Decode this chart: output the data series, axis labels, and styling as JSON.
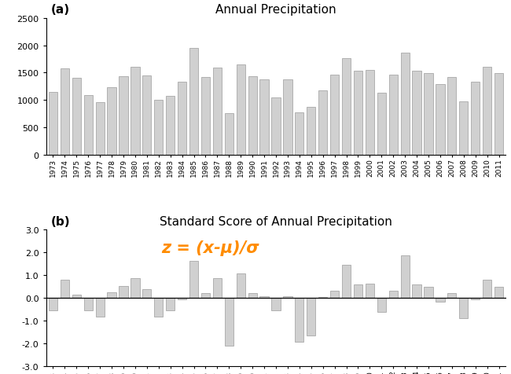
{
  "years": [
    1973,
    1974,
    1975,
    1976,
    1977,
    1978,
    1979,
    1980,
    1981,
    1982,
    1983,
    1984,
    1985,
    1986,
    1987,
    1988,
    1989,
    1990,
    1991,
    1992,
    1993,
    1994,
    1995,
    1996,
    1997,
    1998,
    1999,
    2000,
    2001,
    2002,
    2003,
    2004,
    2005,
    2006,
    2007,
    2008,
    2009,
    2010,
    2011
  ],
  "precip": [
    1150,
    1580,
    1400,
    1090,
    960,
    1230,
    1440,
    1600,
    1450,
    1010,
    1080,
    1340,
    1950,
    1420,
    1590,
    760,
    1650,
    1440,
    1380,
    1040,
    1380,
    780,
    880,
    1170,
    1460,
    1770,
    1540,
    1550,
    1130,
    1460,
    1870,
    1540,
    1490,
    1290,
    1420,
    980,
    1340,
    1600,
    1490
  ],
  "zscore": [
    -0.55,
    0.82,
    0.16,
    -0.55,
    -0.82,
    0.27,
    0.55,
    0.88,
    0.38,
    -0.82,
    -0.55,
    -0.05,
    1.65,
    0.22,
    0.88,
    -2.1,
    1.1,
    0.22,
    0.08,
    -0.55,
    0.08,
    -1.92,
    -1.65,
    0.05,
    0.32,
    1.48,
    0.6,
    0.65,
    -0.6,
    0.32,
    1.87,
    0.6,
    0.49,
    -0.16,
    0.22,
    -0.88,
    -0.05,
    0.82,
    0.49
  ],
  "bar_color": "#d0d0d0",
  "title_a": "Annual Precipitation",
  "title_b": "Standard Score of Annual Precipitation",
  "label_a": "(a)",
  "label_b": "(b)",
  "formula": "z = (x-μ)/σ",
  "formula_color": "#ff8c00",
  "ylim_a": [
    0,
    2500
  ],
  "yticks_a": [
    0,
    500,
    1000,
    1500,
    2000,
    2500
  ],
  "ylim_b": [
    -3.0,
    3.0
  ],
  "yticks_b": [
    -3.0,
    -2.0,
    -1.0,
    0.0,
    1.0,
    2.0,
    3.0
  ],
  "bg_color": "#ffffff",
  "edge_color": "#888888"
}
